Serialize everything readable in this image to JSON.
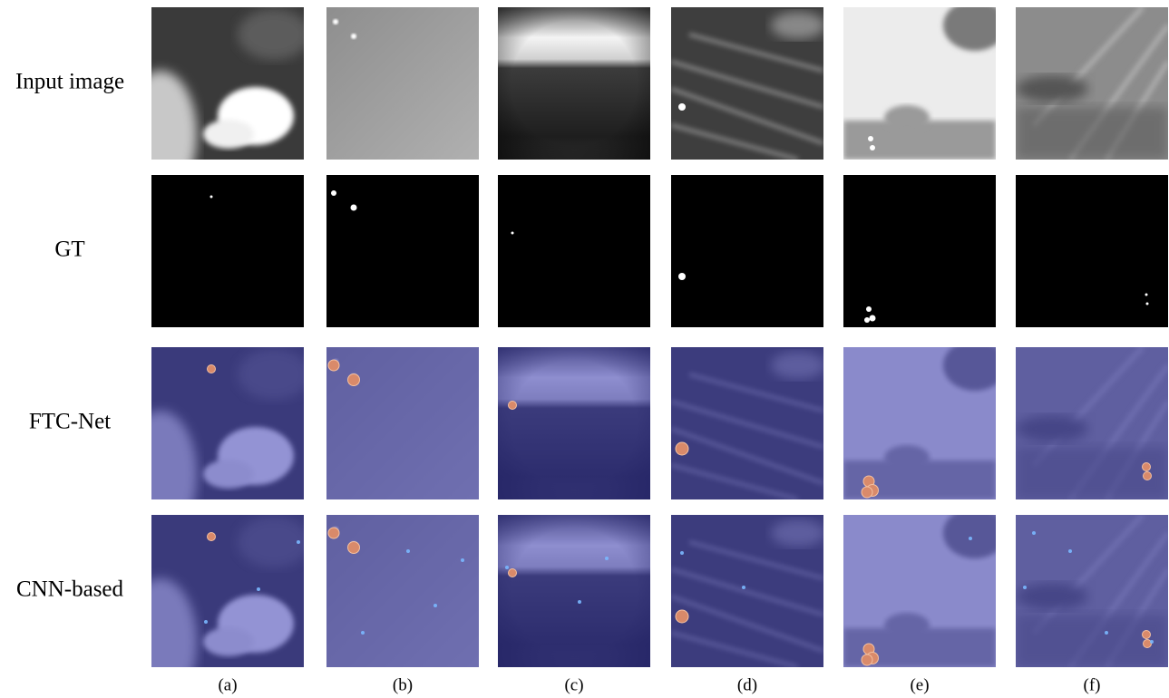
{
  "row_labels": [
    "Input image",
    "GT",
    "FTC-Net",
    "CNN-based"
  ],
  "column_labels": [
    "(a)",
    "(b)",
    "(c)",
    "(d)",
    "(e)",
    "(f)"
  ]
}
